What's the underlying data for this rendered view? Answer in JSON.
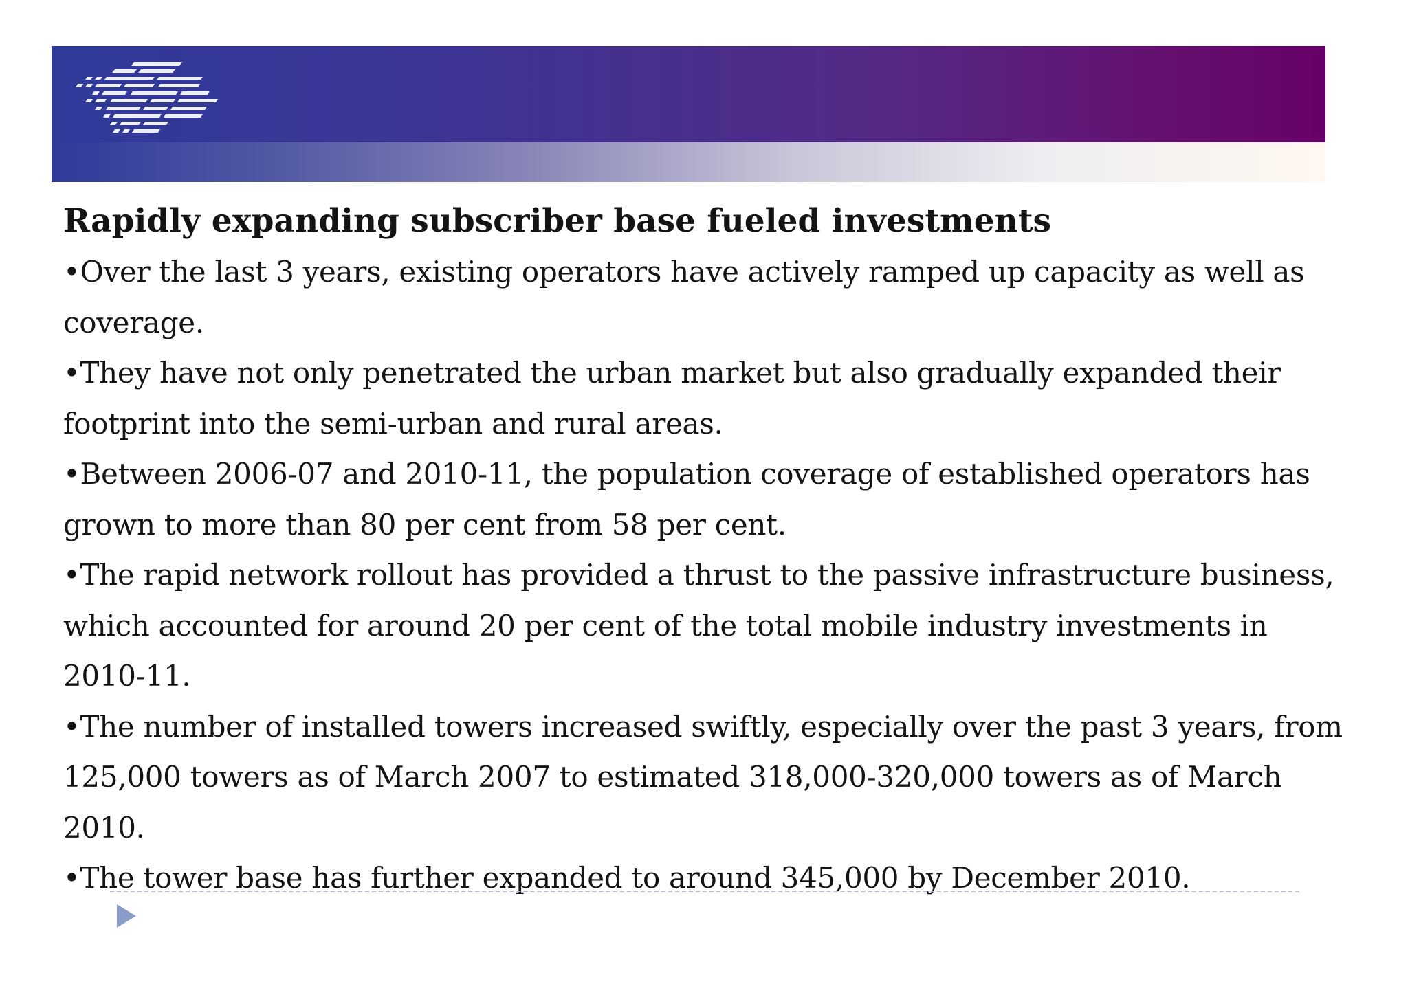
{
  "slide": {
    "title": "Rapidly expanding subscriber base fueled investments",
    "bullets": [
      "•Over the last 3 years, existing operators have actively ramped up capacity as well as coverage.",
      "•They have not only penetrated the urban market but also gradually expanded their footprint into the semi-urban and rural areas.",
      "•Between 2006-07 and 2010-11, the population coverage of established operators has grown to more than 80 per cent from 58 per cent.",
      "•The rapid network rollout has provided a thrust to the passive infrastructure business, which accounted for around 20 per cent of the total mobile industry investments in 2010-11.",
      "•The number of installed towers increased swiftly, especially over the past 3 years, from 125,000 towers as of March 2007 to estimated 318,000-320,000 towers as of March 2010.",
      "•The tower base has further expanded to around 345,000 by December 2010."
    ]
  },
  "icons": {
    "logo": "striped-logo-icon",
    "nav_arrow": "play-arrow-icon"
  },
  "colors": {
    "banner_left": "#2f3a9a",
    "banner_right": "#660068",
    "arrow": "#8a9cc8",
    "text": "#141414"
  }
}
